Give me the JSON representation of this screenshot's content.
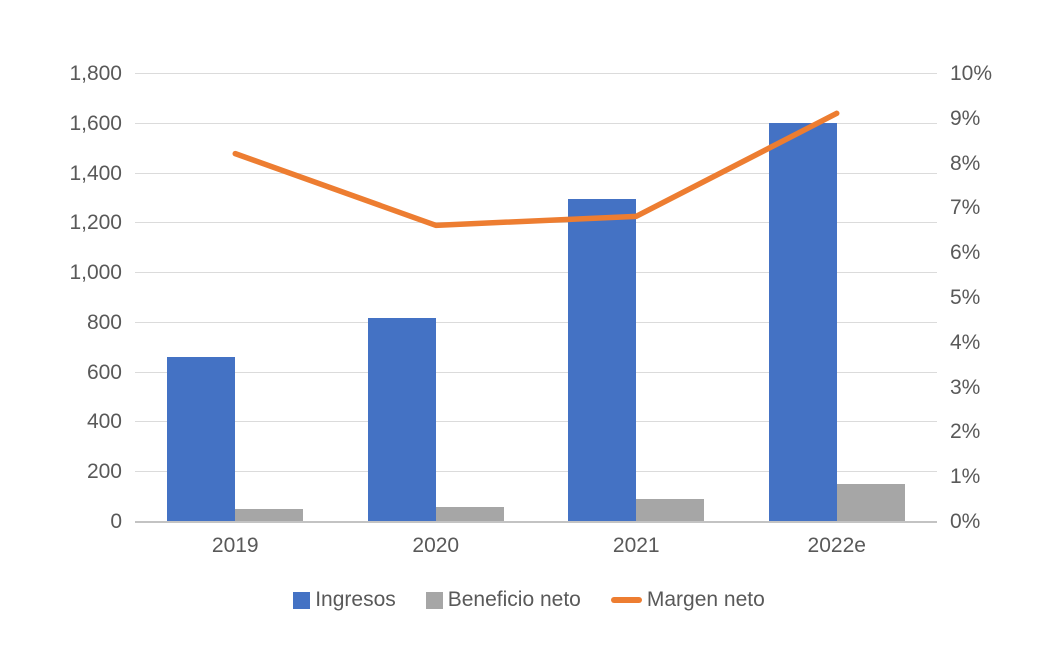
{
  "chart_data": {
    "type": "combo-bar-line",
    "title": "",
    "categories": [
      "2019",
      "2020",
      "2021",
      "2022e"
    ],
    "series": [
      {
        "name": "Ingresos",
        "type": "bar",
        "axis": "left",
        "color": "#4472C4",
        "values": [
          660,
          815,
          1295,
          1600
        ]
      },
      {
        "name": "Beneficio neto",
        "type": "bar",
        "axis": "left",
        "color": "#A6A6A6",
        "values": [
          50,
          55,
          90,
          150
        ]
      },
      {
        "name": "Margen neto",
        "type": "line",
        "axis": "right",
        "color": "#ED7D31",
        "values": [
          8.2,
          6.6,
          6.8,
          9.1
        ]
      }
    ],
    "left_axis": {
      "min": 0,
      "max": 1800,
      "step": 200,
      "tick_labels": [
        "0",
        "200",
        "400",
        "600",
        "800",
        "1,000",
        "1,200",
        "1,400",
        "1,600",
        "1,800"
      ]
    },
    "right_axis": {
      "min": 0,
      "max": 10,
      "step": 1,
      "tick_labels": [
        "0%",
        "1%",
        "2%",
        "3%",
        "4%",
        "5%",
        "6%",
        "7%",
        "8%",
        "9%",
        "10%"
      ]
    },
    "grid": true,
    "legend_position": "bottom",
    "colors": {
      "gridline": "#DBDBDB",
      "axis_baseline": "#C3C3C3",
      "axis_text": "#595959",
      "background": "#FFFFFF"
    }
  }
}
